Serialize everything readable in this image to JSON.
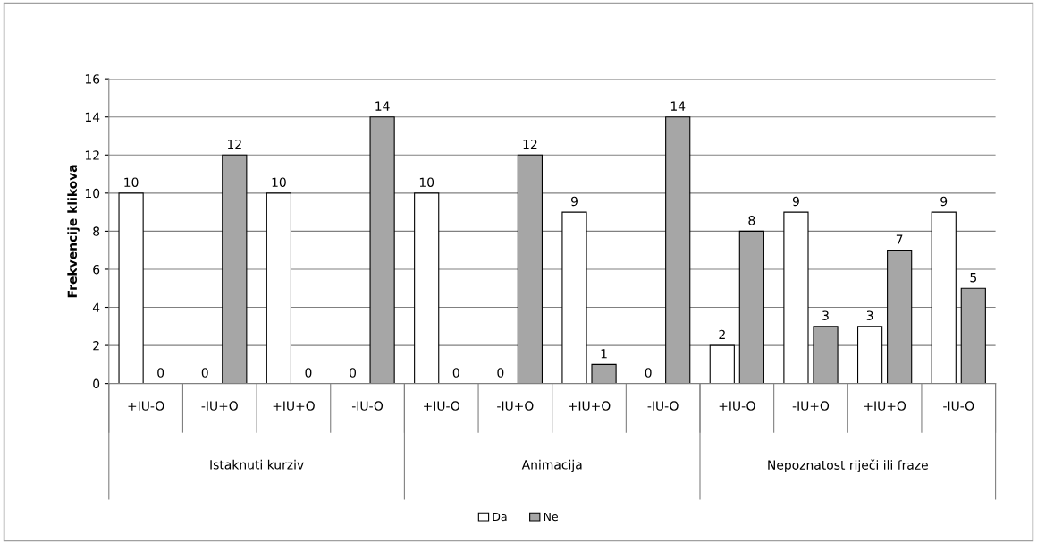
{
  "chart_data": {
    "type": "bar",
    "ylabel": "Frekvencije klikova",
    "categories": [
      "+IU-O",
      "-IU+O",
      "+IU+O",
      "-IU-O",
      "+IU-O",
      "-IU+O",
      "+IU+O",
      "-IU-O",
      "+IU-O",
      "-IU+O",
      "+IU+O",
      "-IU-O"
    ],
    "series": [
      {
        "name": "Da",
        "color": "#ffffff",
        "values": [
          10,
          0,
          10,
          0,
          10,
          0,
          9,
          0,
          2,
          9,
          3,
          9
        ]
      },
      {
        "name": "Ne",
        "color": "#a6a6a6",
        "values": [
          0,
          12,
          0,
          14,
          0,
          12,
          1,
          14,
          8,
          3,
          7,
          5
        ]
      }
    ],
    "annotations": [
      "Istaknuti kurziv",
      "Animacija",
      "Nepoznatost riječi ili fraze"
    ],
    "ylim": [
      0,
      16
    ],
    "yticks": [
      0,
      2,
      4,
      6,
      8,
      10,
      12,
      14,
      16
    ],
    "grid": "y",
    "legend": "bottom",
    "data_labels": true
  }
}
